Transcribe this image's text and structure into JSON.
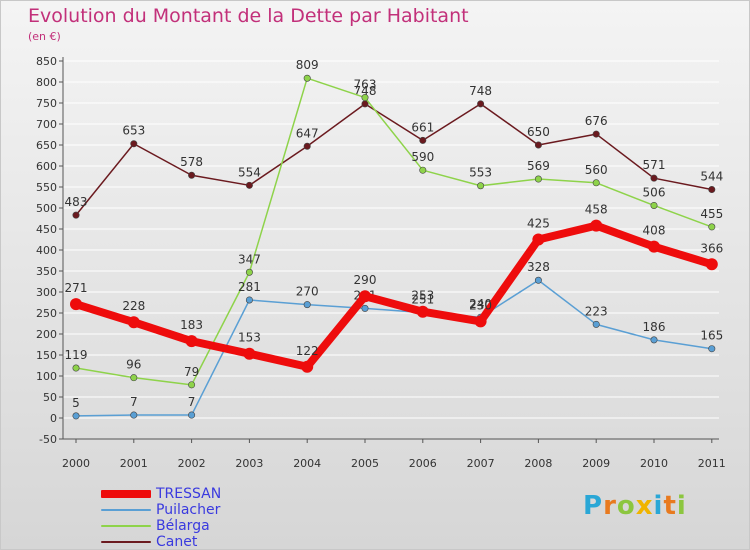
{
  "chart_data": {
    "type": "line",
    "title": "Evolution du Montant de la Dette par Habitant",
    "subtitle": "(en €)",
    "xlabel": "",
    "ylabel": "",
    "x": [
      "2000",
      "2001",
      "2002",
      "2003",
      "2004",
      "2005",
      "2006",
      "2007",
      "2008",
      "2009",
      "2010",
      "2011"
    ],
    "ylim": [
      -50,
      850
    ],
    "yticks": [
      "-50",
      "0",
      "50",
      "100",
      "150",
      "200",
      "250",
      "300",
      "350",
      "400",
      "450",
      "500",
      "550",
      "600",
      "650",
      "700",
      "750",
      "800",
      "850"
    ],
    "grid": "horizontal",
    "legend_position": "bottom-left",
    "series": [
      {
        "name": "Canet",
        "color": "#6b1a1f",
        "values": [
          483,
          653,
          578,
          554,
          647,
          748,
          661,
          748,
          650,
          676,
          571,
          544
        ],
        "labels": [
          "483",
          "653",
          "578",
          "554",
          "647",
          "748",
          "661",
          "748",
          "650",
          "676",
          "571",
          "544"
        ]
      },
      {
        "name": "Bélarga",
        "color": "#8ed34a",
        "values": [
          119,
          96,
          79,
          347,
          809,
          763,
          590,
          553,
          569,
          560,
          506,
          455
        ],
        "labels": [
          "119",
          "96",
          "79",
          "347",
          "809",
          "763",
          "590",
          "553",
          "569",
          "560",
          "506",
          "455"
        ]
      },
      {
        "name": "Puilacher",
        "color": "#5a9fd4",
        "values": [
          5,
          7,
          7,
          281,
          270,
          261,
          251,
          240,
          328,
          223,
          186,
          165
        ],
        "labels": [
          "5",
          "7",
          "7",
          "281",
          "270",
          "261",
          "251",
          "240",
          "328",
          "223",
          "186",
          "165"
        ]
      },
      {
        "name": "TRESSAN",
        "color": "#ee0c0c",
        "values": [
          271,
          228,
          183,
          153,
          122,
          290,
          253,
          230,
          425,
          458,
          408,
          366
        ],
        "labels": [
          "271",
          "228",
          "183",
          "153",
          "122",
          "290",
          "253",
          "230",
          "425",
          "458",
          "408",
          "366"
        ]
      }
    ]
  },
  "legend": [
    {
      "label": "TRESSAN",
      "color": "#ee0c0c"
    },
    {
      "label": "Puilacher",
      "color": "#5a9fd4"
    },
    {
      "label": "Bélarga",
      "color": "#8ed34a"
    },
    {
      "label": "Canet",
      "color": "#6b1a1f"
    }
  ],
  "logo": {
    "letters": [
      "P",
      "r",
      "o",
      "x",
      "i",
      "t",
      "i"
    ],
    "colors": [
      "#2aa7d6",
      "#e87a1f",
      "#8cc63f",
      "#f0b400",
      "#2aa7d6",
      "#e87a1f",
      "#8cc63f"
    ]
  }
}
